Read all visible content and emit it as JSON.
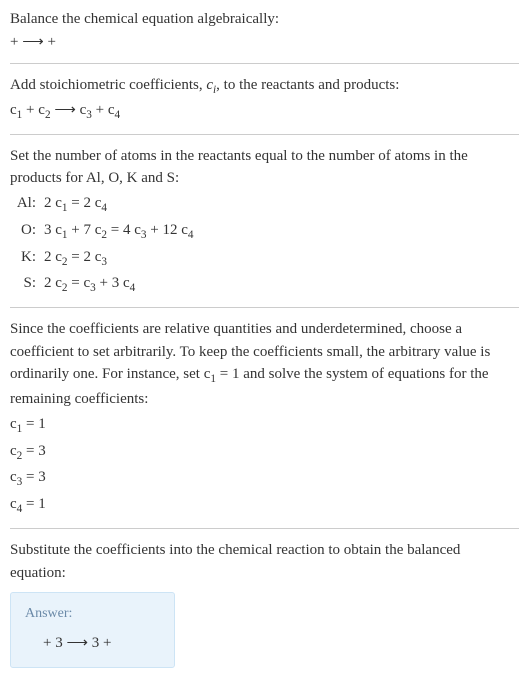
{
  "intro": {
    "line1": "Balance the chemical equation algebraically:",
    "line2": " +  ⟶  + "
  },
  "stoich": {
    "line1_a": "Add stoichiometric coefficients, ",
    "line1_ci": "c",
    "line1_ci_sub": "i",
    "line1_b": ", to the reactants and products:",
    "eq_parts": {
      "c1": "c",
      "s1": "1",
      "plus1": " + ",
      "c2": "c",
      "s2": "2",
      "arrow": " ⟶ ",
      "c3": "c",
      "s3": "3",
      "plus2": " + ",
      "c4": "c",
      "s4": "4"
    }
  },
  "atoms": {
    "intro": "Set the number of atoms in the reactants equal to the number of atoms in the products for Al, O, K and S:",
    "rows": [
      {
        "label": "Al:",
        "lhs_a": "2 c",
        "lhs_as": "1",
        "eq": " = 2 c",
        "rhs_as": "4"
      },
      {
        "label": "O:",
        "lhs_a": "3 c",
        "lhs_as": "1",
        "mid": " + 7 c",
        "mid_s": "2",
        "eq": " = 4 c",
        "rhs_as": "3",
        "rhs2": " + 12 c",
        "rhs2_s": "4"
      },
      {
        "label": "K:",
        "lhs_a": "2 c",
        "lhs_as": "2",
        "eq": " = 2 c",
        "rhs_as": "3"
      },
      {
        "label": "S:",
        "lhs_a": "2 c",
        "lhs_as": "2",
        "eq": " = c",
        "rhs_as": "3",
        "rhs2": " + 3 c",
        "rhs2_s": "4"
      }
    ]
  },
  "choose": {
    "text_a": "Since the coefficients are relative quantities and underdetermined, choose a coefficient to set arbitrarily. To keep the coefficients small, the arbitrary value is ordinarily one. For instance, set c",
    "text_sub": "1",
    "text_b": " = 1 and solve the system of equations for the remaining coefficients:",
    "lines": [
      {
        "c": "c",
        "s": "1",
        "v": " = 1"
      },
      {
        "c": "c",
        "s": "2",
        "v": " = 3"
      },
      {
        "c": "c",
        "s": "3",
        "v": " = 3"
      },
      {
        "c": "c",
        "s": "4",
        "v": " = 1"
      }
    ]
  },
  "substitute": {
    "text": "Substitute the coefficients into the chemical reaction to obtain the balanced equation:"
  },
  "answer": {
    "title": "Answer:",
    "eq": " + 3  ⟶ 3  + "
  }
}
